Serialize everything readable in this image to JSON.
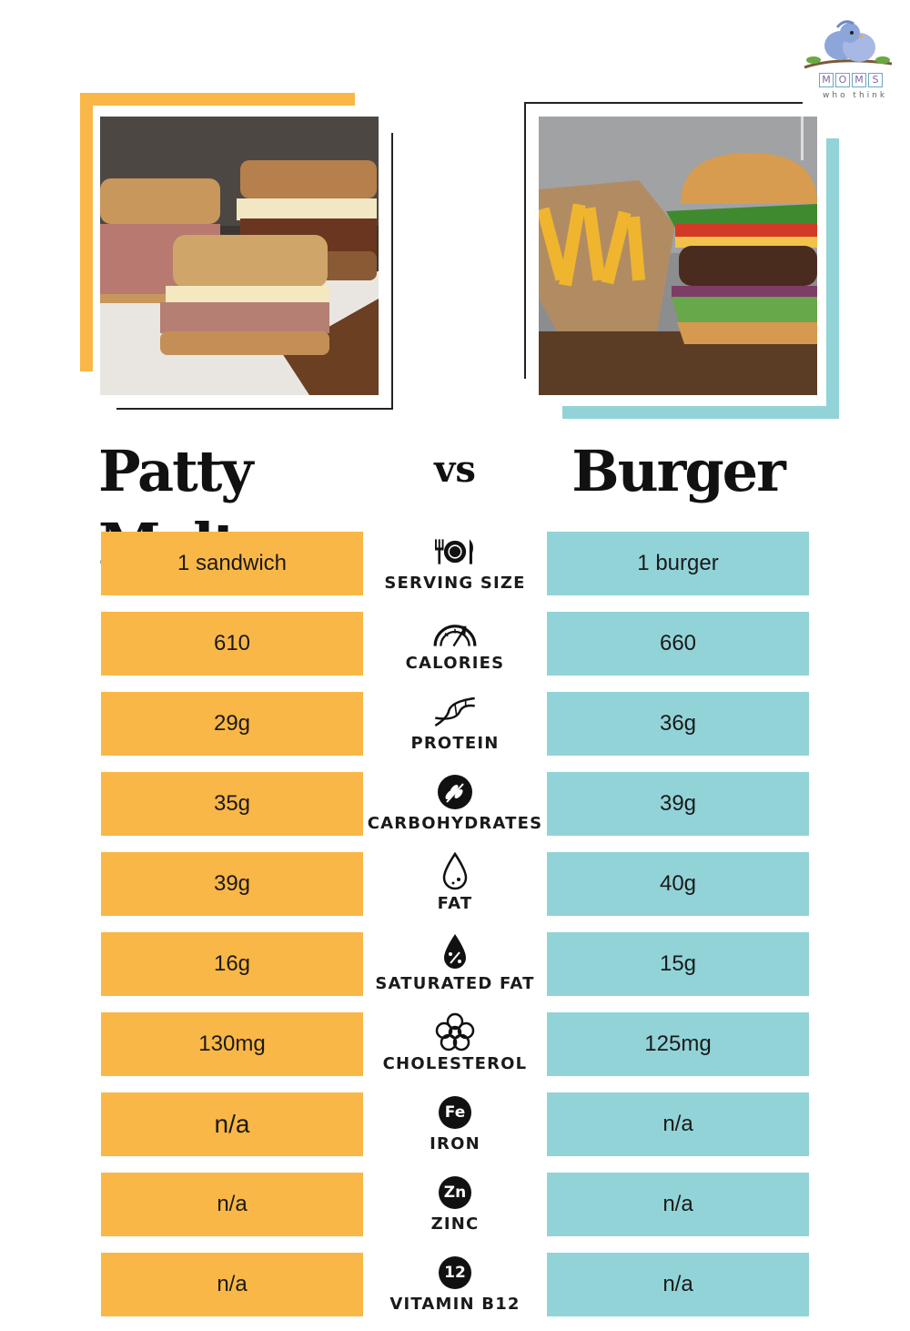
{
  "logo": {
    "letters": [
      "M",
      "O",
      "M",
      "S"
    ],
    "tagline": "who think"
  },
  "header": {
    "left_title": "Patty Melt",
    "vs_label": "vs",
    "right_title": "Burger"
  },
  "colors": {
    "patty_melt_accent": "#f9b748",
    "burger_accent": "#92d3d8"
  },
  "rows": [
    {
      "nutrient": "SERVING SIZE",
      "icon": "fork-plate-knife-icon",
      "patty_melt": "1 sandwich",
      "burger": "1 burger"
    },
    {
      "nutrient": "CALORIES",
      "icon": "gauge-icon",
      "patty_melt": "610",
      "burger": "660"
    },
    {
      "nutrient": "PROTEIN",
      "icon": "dna-icon",
      "patty_melt": "29g",
      "burger": "36g"
    },
    {
      "nutrient": "CARBOHYDRATES",
      "icon": "wheat-icon",
      "patty_melt": "35g",
      "burger": "39g"
    },
    {
      "nutrient": "FAT",
      "icon": "drop-icon",
      "patty_melt": "39g",
      "burger": "40g"
    },
    {
      "nutrient": "SATURATED FAT",
      "icon": "drop-percent-icon",
      "patty_melt": "16g",
      "burger": "15g"
    },
    {
      "nutrient": "CHOLESTEROL",
      "icon": "cholesterol-icon",
      "patty_melt": "130mg",
      "burger": "125mg"
    },
    {
      "nutrient": "IRON",
      "icon": "iron-badge-icon",
      "badge": "Fe",
      "patty_melt": "n/a",
      "burger": "n/a"
    },
    {
      "nutrient": "ZINC",
      "icon": "zinc-badge-icon",
      "badge": "Zn",
      "patty_melt": "n/a",
      "burger": "n/a"
    },
    {
      "nutrient": "VITAMIN B12",
      "icon": "vitamin-b12-badge-icon",
      "badge": "12",
      "patty_melt": "n/a",
      "burger": "n/a"
    }
  ]
}
